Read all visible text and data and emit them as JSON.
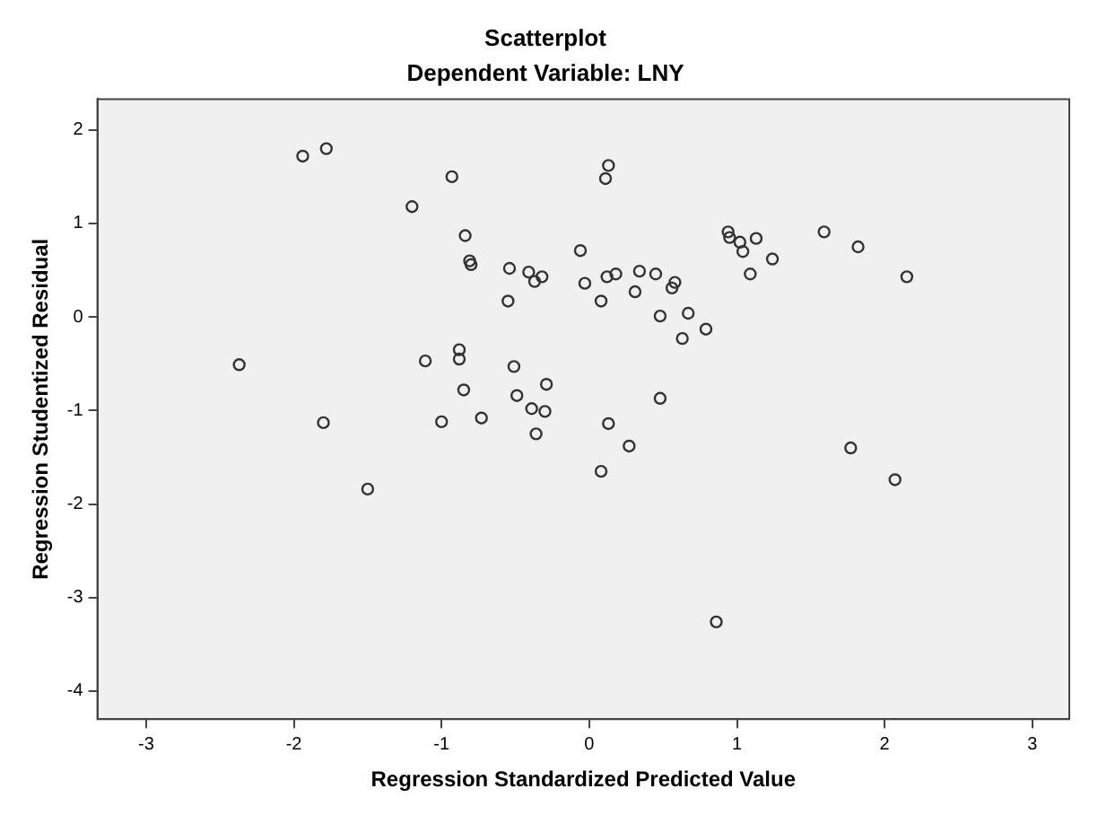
{
  "chart_data": {
    "type": "scatter",
    "title": "Scatterplot",
    "subtitle": "Dependent Variable: LNY",
    "xlabel": "Regression Standardized Predicted Value",
    "ylabel": "Regression Studentized Residual",
    "xlim": [
      -3.33,
      3.25
    ],
    "ylim": [
      -4.3,
      2.33
    ],
    "xticks": [
      -3,
      -2,
      -1,
      0,
      1,
      2,
      3
    ],
    "yticks": [
      -4,
      -3,
      -2,
      -1,
      0,
      1,
      2
    ],
    "grid": false,
    "legend": false,
    "marker": "circle",
    "x": [
      -1.94,
      -1.78,
      -0.93,
      -1.2,
      -0.84,
      -0.81,
      -0.8,
      -0.54,
      -0.41,
      -0.32,
      -0.37,
      -0.55,
      -2.37,
      -1.11,
      -0.88,
      -0.88,
      -0.51,
      -0.29,
      -0.85,
      -0.49,
      -0.39,
      -0.3,
      -1.8,
      -1.0,
      -0.73,
      -0.36,
      -1.5,
      0.13,
      0.11,
      -0.06,
      -0.03,
      0.08,
      0.12,
      0.18,
      0.34,
      0.31,
      0.45,
      0.58,
      0.56,
      0.48,
      0.67,
      0.63,
      0.79,
      0.94,
      0.95,
      1.02,
      1.13,
      1.04,
      1.24,
      1.09,
      1.59,
      1.82,
      2.15,
      0.48,
      0.13,
      0.27,
      0.08,
      1.77,
      2.07,
      0.86
    ],
    "series": [
      {
        "color": "#333333",
        "values": [
          1.72,
          1.8,
          1.5,
          1.18,
          0.87,
          0.6,
          0.56,
          0.52,
          0.48,
          0.43,
          0.38,
          0.17,
          -0.51,
          -0.47,
          -0.35,
          -0.45,
          -0.53,
          -0.72,
          -0.78,
          -0.84,
          -0.98,
          -1.01,
          -1.13,
          -1.12,
          -1.08,
          -1.25,
          -1.84,
          1.62,
          1.48,
          0.71,
          0.36,
          0.17,
          0.43,
          0.46,
          0.49,
          0.27,
          0.46,
          0.37,
          0.31,
          0.01,
          0.04,
          -0.23,
          -0.13,
          0.91,
          0.85,
          0.8,
          0.84,
          0.7,
          0.62,
          0.46,
          0.91,
          0.75,
          0.43,
          -0.87,
          -1.14,
          -1.38,
          -1.65,
          -1.4,
          -1.74,
          -3.26
        ]
      }
    ]
  }
}
